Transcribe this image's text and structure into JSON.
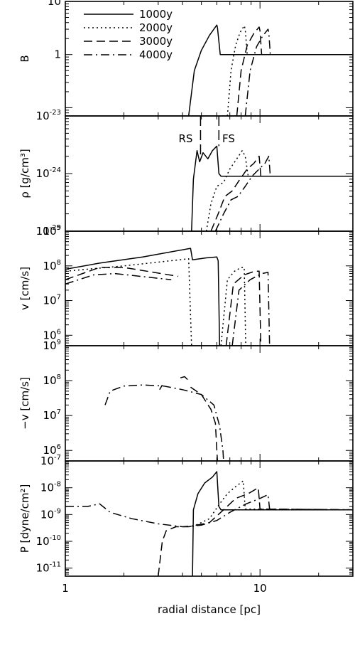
{
  "chart_data": {
    "type": "line",
    "xlabel": "radial distance [pc]",
    "xscale": "log",
    "xlim": [
      1,
      30
    ],
    "xticks": [
      1,
      10
    ],
    "xtick_labels": [
      "1",
      "10"
    ],
    "legend": {
      "placement": "top-left",
      "entries": [
        {
          "label": "1000y",
          "style": "solid"
        },
        {
          "label": "2000y",
          "style": "dotted"
        },
        {
          "label": "3000y",
          "style": "dashed"
        },
        {
          "label": "4000y",
          "style": "dashdot"
        }
      ]
    },
    "panels": [
      {
        "id": "B",
        "ylabel": "B",
        "yscale": "log",
        "ylim": [
          0.07,
          10
        ],
        "ytick_labels": [
          {
            "v": 1,
            "t": "1"
          },
          {
            "v": 10,
            "t": "10"
          }
        ],
        "series": [
          {
            "style": "solid",
            "points": [
              [
                4.3,
                0.07
              ],
              [
                4.6,
                0.5
              ],
              [
                5.0,
                1.2
              ],
              [
                5.5,
                2.3
              ],
              [
                6.0,
                3.6
              ],
              [
                6.05,
                3.2
              ],
              [
                6.25,
                1.0
              ],
              [
                30,
                1.0
              ]
            ]
          },
          {
            "style": "dotted",
            "points": [
              [
                6.8,
                0.07
              ],
              [
                7.1,
                0.5
              ],
              [
                7.5,
                1.5
              ],
              [
                7.9,
                2.6
              ],
              [
                8.3,
                3.5
              ],
              [
                8.4,
                3.0
              ],
              [
                8.6,
                1.0
              ],
              [
                30,
                1.0
              ]
            ]
          },
          {
            "style": "dashed",
            "points": [
              [
                7.6,
                0.07
              ],
              [
                8.0,
                0.5
              ],
              [
                8.6,
                1.5
              ],
              [
                9.3,
                2.5
              ],
              [
                9.9,
                3.3
              ],
              [
                10.0,
                2.8
              ],
              [
                10.2,
                1.0
              ],
              [
                30,
                1.0
              ]
            ]
          },
          {
            "style": "dashdot",
            "points": [
              [
                8.4,
                0.07
              ],
              [
                8.9,
                0.5
              ],
              [
                9.6,
                1.4
              ],
              [
                10.3,
                2.2
              ],
              [
                11.0,
                3.0
              ],
              [
                11.1,
                2.6
              ],
              [
                11.3,
                1.0
              ],
              [
                30,
                1.0
              ]
            ]
          }
        ]
      },
      {
        "id": "rho",
        "ylabel": "ρ [g/cm³]",
        "yscale": "log",
        "ylim": [
          1e-25,
          1e-23
        ],
        "ytick_labels": [
          {
            "v": 1e-25,
            "t": "10",
            "e": "-25"
          },
          {
            "v": 1e-24,
            "t": "10",
            "e": "-24"
          },
          {
            "v": 1e-23,
            "t": "10",
            "e": "-23"
          }
        ],
        "annotations": [
          {
            "text": "RS",
            "x": 4.15,
            "y": 3.5e-24
          },
          {
            "text": "FS",
            "x": 6.9,
            "y": 3.5e-24
          }
        ],
        "shock_markers": [
          {
            "x": 4.95,
            "y_from": 1e-23,
            "y_to": 1.8e-24
          },
          {
            "x": 6.15,
            "y_from": 1e-23,
            "y_to": 3e-24
          }
        ],
        "series": [
          {
            "style": "solid",
            "points": [
              [
                4.45,
                1e-25
              ],
              [
                4.55,
                8e-25
              ],
              [
                4.75,
                2.5e-24
              ],
              [
                4.9,
                1.6e-24
              ],
              [
                5.1,
                2.3e-24
              ],
              [
                5.4,
                1.8e-24
              ],
              [
                5.7,
                2.5e-24
              ],
              [
                6.0,
                3e-24
              ],
              [
                6.15,
                1e-24
              ],
              [
                6.3,
                9e-25
              ],
              [
                30,
                9e-25
              ]
            ]
          },
          {
            "style": "dotted",
            "points": [
              [
                5.3,
                1e-25
              ],
              [
                5.6,
                3e-25
              ],
              [
                6.0,
                6e-25
              ],
              [
                6.5,
                7e-25
              ],
              [
                7.0,
                1.2e-24
              ],
              [
                7.6,
                1.8e-24
              ],
              [
                8.1,
                2.5e-24
              ],
              [
                8.4,
                2e-24
              ],
              [
                8.7,
                9e-25
              ],
              [
                30,
                9e-25
              ]
            ]
          },
          {
            "style": "dashed",
            "points": [
              [
                5.6,
                1e-25
              ],
              [
                6.1,
                2e-25
              ],
              [
                6.6,
                4e-25
              ],
              [
                7.2,
                5e-25
              ],
              [
                7.9,
                8e-25
              ],
              [
                8.6,
                1.2e-24
              ],
              [
                9.3,
                1.5e-24
              ],
              [
                9.9,
                2e-24
              ],
              [
                10.1,
                9e-25
              ],
              [
                30,
                9e-25
              ]
            ]
          },
          {
            "style": "dashdot",
            "points": [
              [
                5.9,
                1e-25
              ],
              [
                6.5,
                2e-25
              ],
              [
                7.1,
                3.5e-25
              ],
              [
                7.7,
                4e-25
              ],
              [
                8.4,
                6e-25
              ],
              [
                9.1,
                9e-25
              ],
              [
                9.9,
                1.2e-24
              ],
              [
                10.6,
                1.5e-24
              ],
              [
                11.1,
                2e-24
              ],
              [
                11.3,
                9e-25
              ],
              [
                30,
                9e-25
              ]
            ]
          }
        ]
      },
      {
        "id": "v",
        "ylabel": "v [cm/s]",
        "yscale": "log",
        "ylim": [
          500000.0,
          1000000000.0
        ],
        "ytick_labels": [
          {
            "v": 1000000.0,
            "t": "10",
            "e": "6"
          },
          {
            "v": 10000000.0,
            "t": "10",
            "e": "7"
          },
          {
            "v": 100000000.0,
            "t": "10",
            "e": "8"
          },
          {
            "v": 1000000000.0,
            "t": "10",
            "e": "9"
          }
        ],
        "series": [
          {
            "style": "solid",
            "points": [
              [
                1.0,
                80000000.0
              ],
              [
                1.5,
                120000000.0
              ],
              [
                2.5,
                180000000.0
              ],
              [
                4.4,
                320000000.0
              ],
              [
                4.5,
                150000000.0
              ],
              [
                5.3,
                170000000.0
              ],
              [
                6.0,
                180000000.0
              ],
              [
                6.1,
                140000000.0
              ],
              [
                6.2,
                500000.0
              ]
            ]
          },
          {
            "style": "dotted",
            "points": [
              [
                1.0,
                70000000.0
              ],
              [
                2.0,
                100000000.0
              ],
              [
                4.3,
                160000000.0
              ],
              [
                4.45,
                500000.0
              ]
            ]
          },
          {
            "style": "dotted",
            "points": [
              [
                6.3,
                500000.0
              ],
              [
                6.8,
                40000000.0
              ],
              [
                7.4,
                70000000.0
              ],
              [
                8.0,
                90000000.0
              ],
              [
                8.3,
                90000000.0
              ],
              [
                8.45,
                500000.0
              ]
            ]
          },
          {
            "style": "dashed",
            "points": [
              [
                1.0,
                40000000.0
              ],
              [
                1.5,
                90000000.0
              ],
              [
                2.0,
                90000000.0
              ],
              [
                3.8,
                50000000.0
              ]
            ]
          },
          {
            "style": "dashed",
            "points": [
              [
                6.7,
                500000.0
              ],
              [
                7.3,
                30000000.0
              ],
              [
                8.3,
                55000000.0
              ],
              [
                9.4,
                70000000.0
              ],
              [
                9.9,
                70000000.0
              ],
              [
                10.1,
                500000.0
              ]
            ]
          },
          {
            "style": "dashdot",
            "points": [
              [
                1.0,
                30000000.0
              ],
              [
                1.4,
                55000000.0
              ],
              [
                1.8,
                60000000.0
              ],
              [
                3.5,
                40000000.0
              ]
            ]
          },
          {
            "style": "dashdot",
            "points": [
              [
                7.2,
                500000.0
              ],
              [
                7.8,
                20000000.0
              ],
              [
                8.9,
                40000000.0
              ],
              [
                10.2,
                60000000.0
              ],
              [
                11.0,
                65000000.0
              ],
              [
                11.2,
                500000.0
              ]
            ]
          }
        ]
      },
      {
        "id": "negv",
        "ylabel": "−v [cm/s]",
        "yscale": "log",
        "ylim": [
          500000.0,
          1000000000.0
        ],
        "ytick_labels": [
          {
            "v": 1000000.0,
            "t": "10",
            "e": "6"
          },
          {
            "v": 10000000.0,
            "t": "10",
            "e": "7"
          },
          {
            "v": 100000000.0,
            "t": "10",
            "e": "8"
          },
          {
            "v": 1000000000.0,
            "t": "10",
            "e": "9"
          }
        ],
        "series": [
          {
            "style": "dashed",
            "points": [
              [
                3.9,
                120000000.0
              ],
              [
                4.1,
                130000000.0
              ],
              [
                4.3,
                100000000.0
              ]
            ]
          },
          {
            "style": "dashed",
            "points": [
              [
                3.05,
                55000000.0
              ],
              [
                3.15,
                75000000.0
              ]
            ]
          },
          {
            "style": "dashed",
            "points": [
              [
                4.4,
                65000000.0
              ],
              [
                5.0,
                40000000.0
              ],
              [
                5.6,
                15000000.0
              ],
              [
                5.9,
                6000000.0
              ],
              [
                6.0,
                1000000.0
              ],
              [
                6.05,
                500000.0
              ]
            ]
          },
          {
            "style": "dashdot",
            "points": [
              [
                1.6,
                20000000.0
              ],
              [
                1.7,
                50000000.0
              ],
              [
                2.0,
                70000000.0
              ],
              [
                2.5,
                75000000.0
              ],
              [
                3.2,
                70000000.0
              ],
              [
                4.0,
                55000000.0
              ],
              [
                5.0,
                40000000.0
              ],
              [
                5.8,
                20000000.0
              ],
              [
                6.2,
                5000000.0
              ],
              [
                6.45,
                1000000.0
              ],
              [
                6.5,
                500000.0
              ]
            ]
          }
        ]
      },
      {
        "id": "P",
        "ylabel": "P [dyne/cm²]",
        "yscale": "log",
        "ylim": [
          5e-12,
          1e-07
        ],
        "ytick_labels": [
          {
            "v": 1e-11,
            "t": "10",
            "e": "-11"
          },
          {
            "v": 1e-10,
            "t": "10",
            "e": "-10"
          },
          {
            "v": 1e-09,
            "t": "10",
            "e": "-9"
          },
          {
            "v": 1e-08,
            "t": "10",
            "e": "-8"
          },
          {
            "v": 1e-07,
            "t": "10",
            "e": "-7"
          }
        ],
        "series": [
          {
            "style": "solid",
            "points": [
              [
                4.5,
                5e-12
              ],
              [
                4.55,
                1.5e-09
              ],
              [
                4.8,
                6e-09
              ],
              [
                5.2,
                1.5e-08
              ],
              [
                5.7,
                2.5e-08
              ],
              [
                6.0,
                4e-08
              ],
              [
                6.15,
                2e-09
              ],
              [
                6.3,
                1.5e-09
              ],
              [
                30,
                1.5e-09
              ]
            ]
          },
          {
            "style": "dotted",
            "points": [
              [
                4.5,
                3.5e-10
              ],
              [
                5.5,
                7e-10
              ],
              [
                6.2,
                2.5e-09
              ],
              [
                6.8,
                6e-09
              ],
              [
                7.5,
                1.1e-08
              ],
              [
                8.2,
                1.8e-08
              ],
              [
                8.4,
                1.6e-09
              ],
              [
                30,
                1.5e-09
              ]
            ]
          },
          {
            "style": "dashed",
            "points": [
              [
                3.0,
                5e-12
              ],
              [
                3.15,
                1e-10
              ],
              [
                3.3,
                2.5e-10
              ],
              [
                3.7,
                3.5e-10
              ],
              [
                4.3,
                3.5e-10
              ],
              [
                5.5,
                5e-10
              ],
              [
                6.5,
                1.5e-09
              ],
              [
                7.5,
                4e-09
              ],
              [
                8.7,
                6e-09
              ],
              [
                9.8,
                1e-08
              ],
              [
                10.0,
                1.6e-09
              ],
              [
                30,
                1.5e-09
              ]
            ]
          },
          {
            "style": "dashdot",
            "points": [
              [
                1.0,
                2e-09
              ],
              [
                1.3,
                2e-09
              ],
              [
                1.5,
                2.5e-09
              ],
              [
                1.7,
                1.2e-09
              ],
              [
                2.2,
                7e-10
              ],
              [
                3.0,
                4.5e-10
              ],
              [
                4.0,
                3.5e-10
              ],
              [
                5.0,
                4e-10
              ],
              [
                6.0,
                6e-10
              ],
              [
                7.0,
                1.2e-09
              ],
              [
                8.5,
                2.5e-09
              ],
              [
                10.0,
                4e-09
              ],
              [
                11.0,
                5.5e-09
              ],
              [
                11.2,
                1.6e-09
              ],
              [
                30,
                1.5e-09
              ]
            ]
          }
        ]
      }
    ]
  }
}
